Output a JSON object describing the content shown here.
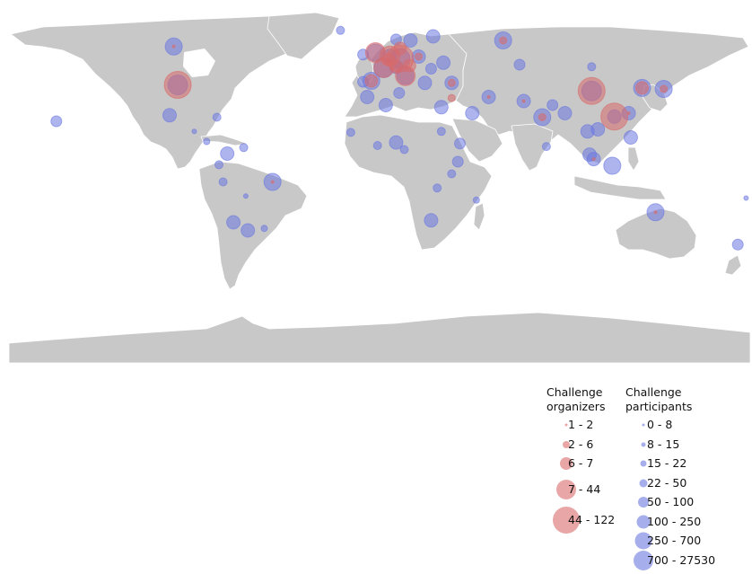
{
  "colors": {
    "land": "#c8c8c8",
    "border": "#ffffff",
    "organizers": "#d96a6a",
    "participants": "#6b78e0"
  },
  "legend": {
    "organizers": {
      "title": "Challenge\norganizers",
      "items": [
        {
          "label": "1 - 2",
          "level": 1
        },
        {
          "label": "2 - 6",
          "level": 2
        },
        {
          "label": "6 - 7",
          "level": 3
        },
        {
          "label": "7 - 44",
          "level": 4
        },
        {
          "label": "44 - 122",
          "level": 5
        }
      ]
    },
    "participants": {
      "title": "Challenge\nparticipants",
      "items": [
        {
          "label": "0 - 8",
          "level": 1
        },
        {
          "label": "8 - 15",
          "level": 2
        },
        {
          "label": "15 - 22",
          "level": 3
        },
        {
          "label": "22 - 50",
          "level": 4
        },
        {
          "label": "50 - 100",
          "level": 5
        },
        {
          "label": "100 - 250",
          "level": 6
        },
        {
          "label": "250 - 700",
          "level": 7
        },
        {
          "label": "700 - 27530",
          "level": 8
        }
      ]
    }
  },
  "map_points": {
    "participants": [
      {
        "place": "Canada",
        "lon": -100,
        "lat": 57,
        "level": 7
      },
      {
        "place": "USA",
        "lon": -98,
        "lat": 38,
        "level": 8
      },
      {
        "place": "Mexico",
        "lon": -102,
        "lat": 23,
        "level": 6
      },
      {
        "place": "Brazil",
        "lon": -52,
        "lat": -10,
        "level": 7
      },
      {
        "place": "Argentina",
        "lon": -64,
        "lat": -34,
        "level": 6
      },
      {
        "place": "Chile",
        "lon": -71,
        "lat": -30,
        "level": 6
      },
      {
        "place": "Colombia",
        "lon": -74,
        "lat": 4,
        "level": 6
      },
      {
        "place": "Peru",
        "lon": -76,
        "lat": -10,
        "level": 4
      },
      {
        "place": "Venezuela",
        "lon": -66,
        "lat": 7,
        "level": 4
      },
      {
        "place": "Ecuador",
        "lon": -78,
        "lat": -1.5,
        "level": 4
      },
      {
        "place": "Cuba",
        "lon": -79,
        "lat": 22,
        "level": 4
      },
      {
        "place": "Hawaii",
        "lon": -157,
        "lat": 20,
        "level": 5
      },
      {
        "place": "Uruguay",
        "lon": -56,
        "lat": -33,
        "level": 3
      },
      {
        "place": "Bolivia",
        "lon": -65,
        "lat": -17,
        "level": 2
      },
      {
        "place": "Guatemala",
        "lon": -90,
        "lat": 15,
        "level": 2
      },
      {
        "place": "Costa Rica",
        "lon": -84,
        "lat": 10,
        "level": 3
      },
      {
        "place": "UK",
        "lon": -2,
        "lat": 54,
        "level": 7
      },
      {
        "place": "Ireland",
        "lon": -8,
        "lat": 53,
        "level": 5
      },
      {
        "place": "Iceland",
        "lon": -19,
        "lat": 65,
        "level": 4
      },
      {
        "place": "France",
        "lon": 2,
        "lat": 46.5,
        "level": 8
      },
      {
        "place": "Spain",
        "lon": -4,
        "lat": 40,
        "level": 7
      },
      {
        "place": "Portugal",
        "lon": -8,
        "lat": 39.5,
        "level": 5
      },
      {
        "place": "Germany",
        "lon": 10,
        "lat": 51,
        "level": 8
      },
      {
        "place": "Netherlands",
        "lon": 5,
        "lat": 52.3,
        "level": 6
      },
      {
        "place": "Italy",
        "lon": 12.5,
        "lat": 42.5,
        "level": 7
      },
      {
        "place": "Switzerland",
        "lon": 8,
        "lat": 47,
        "level": 6
      },
      {
        "place": "Poland",
        "lon": 19,
        "lat": 52,
        "level": 6
      },
      {
        "place": "Sweden",
        "lon": 15,
        "lat": 60,
        "level": 6
      },
      {
        "place": "Norway",
        "lon": 8,
        "lat": 60.5,
        "level": 5
      },
      {
        "place": "Finland",
        "lon": 26,
        "lat": 62,
        "level": 6
      },
      {
        "place": "Russia",
        "lon": 60,
        "lat": 60,
        "level": 7
      },
      {
        "place": "Ukraine",
        "lon": 31,
        "lat": 49,
        "level": 6
      },
      {
        "place": "Turkey",
        "lon": 35,
        "lat": 39,
        "level": 6
      },
      {
        "place": "Greece",
        "lon": 22,
        "lat": 39,
        "level": 6
      },
      {
        "place": "Romania",
        "lon": 25,
        "lat": 46,
        "level": 5
      },
      {
        "place": "Iran",
        "lon": 53,
        "lat": 32,
        "level": 6
      },
      {
        "place": "Saudi Arabia",
        "lon": 45,
        "lat": 24,
        "level": 6
      },
      {
        "place": "Egypt",
        "lon": 30,
        "lat": 27,
        "level": 6
      },
      {
        "place": "Morocco",
        "lon": -6,
        "lat": 32,
        "level": 6
      },
      {
        "place": "Algeria",
        "lon": 3,
        "lat": 28,
        "level": 6
      },
      {
        "place": "Tunisia",
        "lon": 9.5,
        "lat": 34,
        "level": 5
      },
      {
        "place": "Nigeria",
        "lon": 8,
        "lat": 9.5,
        "level": 6
      },
      {
        "place": "Ghana",
        "lon": -1,
        "lat": 8,
        "level": 4
      },
      {
        "place": "Senegal",
        "lon": -14,
        "lat": 14.5,
        "level": 4
      },
      {
        "place": "Ethiopia",
        "lon": 39,
        "lat": 9,
        "level": 5
      },
      {
        "place": "Kenya",
        "lon": 38,
        "lat": 0,
        "level": 5
      },
      {
        "place": "Sudan",
        "lon": 30,
        "lat": 15,
        "level": 4
      },
      {
        "place": "Cameroon",
        "lon": 12,
        "lat": 6,
        "level": 4
      },
      {
        "place": "South Africa",
        "lon": 25,
        "lat": -29,
        "level": 6
      },
      {
        "place": "Tanzania",
        "lon": 35,
        "lat": -6,
        "level": 4
      },
      {
        "place": "Zambia",
        "lon": 28,
        "lat": -13,
        "level": 4
      },
      {
        "place": "Madagascar",
        "lon": 47,
        "lat": -19,
        "level": 3
      },
      {
        "place": "Pakistan",
        "lon": 70,
        "lat": 30,
        "level": 6
      },
      {
        "place": "India",
        "lon": 79,
        "lat": 22,
        "level": 7
      },
      {
        "place": "Bangladesh",
        "lon": 90,
        "lat": 24,
        "level": 6
      },
      {
        "place": "Sri Lanka",
        "lon": 81,
        "lat": 7.5,
        "level": 4
      },
      {
        "place": "Nepal",
        "lon": 84,
        "lat": 28,
        "level": 5
      },
      {
        "place": "Kazakhstan",
        "lon": 68,
        "lat": 48,
        "level": 5
      },
      {
        "place": "China",
        "lon": 103,
        "lat": 35,
        "level": 8
      },
      {
        "place": "Mongolia",
        "lon": 103,
        "lat": 47,
        "level": 4
      },
      {
        "place": "Vietnam",
        "lon": 106,
        "lat": 16,
        "level": 6
      },
      {
        "place": "Thailand",
        "lon": 101,
        "lat": 15,
        "level": 6
      },
      {
        "place": "Malaysia",
        "lon": 102,
        "lat": 3.5,
        "level": 6
      },
      {
        "place": "Singapore",
        "lon": 104,
        "lat": 1.3,
        "level": 6
      },
      {
        "place": "Indonesia",
        "lon": 113,
        "lat": -2,
        "level": 7
      },
      {
        "place": "Philippines",
        "lon": 122,
        "lat": 12,
        "level": 6
      },
      {
        "place": "Taiwan",
        "lon": 121,
        "lat": 24,
        "level": 6
      },
      {
        "place": "Hong Kong",
        "lon": 114,
        "lat": 22.3,
        "level": 6
      },
      {
        "place": "South Korea",
        "lon": 127.5,
        "lat": 36.5,
        "level": 7
      },
      {
        "place": "Japan",
        "lon": 138,
        "lat": 36,
        "level": 7
      },
      {
        "place": "Australia",
        "lon": 134,
        "lat": -25,
        "level": 7
      },
      {
        "place": "New Zealand",
        "lon": 174,
        "lat": -41,
        "level": 5
      },
      {
        "place": "Fiji",
        "lon": 178,
        "lat": -18,
        "level": 2
      }
    ],
    "organizers": [
      {
        "place": "USA",
        "lon": -98,
        "lat": 38,
        "level": 5
      },
      {
        "place": "UK",
        "lon": -2,
        "lat": 54,
        "level": 4
      },
      {
        "place": "France",
        "lon": 2,
        "lat": 46.5,
        "level": 4
      },
      {
        "place": "Germany",
        "lon": 10,
        "lat": 51,
        "level": 5
      },
      {
        "place": "Netherlands",
        "lon": 5,
        "lat": 52.3,
        "level": 4
      },
      {
        "place": "Switzerland",
        "lon": 8,
        "lat": 47,
        "level": 3
      },
      {
        "place": "Italy",
        "lon": 12.5,
        "lat": 42.5,
        "level": 4
      },
      {
        "place": "Spain",
        "lon": -4,
        "lat": 40,
        "level": 3
      },
      {
        "place": "Austria",
        "lon": 14.5,
        "lat": 47.5,
        "level": 3
      },
      {
        "place": "Belgium",
        "lon": 4.5,
        "lat": 50.5,
        "level": 3
      },
      {
        "place": "Denmark",
        "lon": 10,
        "lat": 56,
        "level": 3
      },
      {
        "place": "Poland",
        "lon": 19,
        "lat": 52,
        "level": 2
      },
      {
        "place": "Russia",
        "lon": 60,
        "lat": 60,
        "level": 2
      },
      {
        "place": "Turkey",
        "lon": 35,
        "lat": 39,
        "level": 2
      },
      {
        "place": "China",
        "lon": 103,
        "lat": 35,
        "level": 5
      },
      {
        "place": "Hong Kong",
        "lon": 114,
        "lat": 22.3,
        "level": 5
      },
      {
        "place": "South Korea",
        "lon": 127.5,
        "lat": 36.5,
        "level": 3
      },
      {
        "place": "Japan",
        "lon": 138,
        "lat": 36,
        "level": 2
      },
      {
        "place": "India",
        "lon": 79,
        "lat": 22,
        "level": 2
      },
      {
        "place": "Iran",
        "lon": 53,
        "lat": 32,
        "level": 1
      },
      {
        "place": "Pakistan",
        "lon": 70,
        "lat": 30,
        "level": 1
      },
      {
        "place": "Taiwan",
        "lon": 121,
        "lat": 24,
        "level": 1
      },
      {
        "place": "Singapore",
        "lon": 104,
        "lat": 1.3,
        "level": 1
      },
      {
        "place": "Australia",
        "lon": 134,
        "lat": -25,
        "level": 1
      },
      {
        "place": "Israel",
        "lon": 35,
        "lat": 31.5,
        "level": 2
      },
      {
        "place": "Canada",
        "lon": -100,
        "lat": 57,
        "level": 1
      },
      {
        "place": "Brazil",
        "lon": -52,
        "lat": -10,
        "level": 1
      }
    ]
  }
}
